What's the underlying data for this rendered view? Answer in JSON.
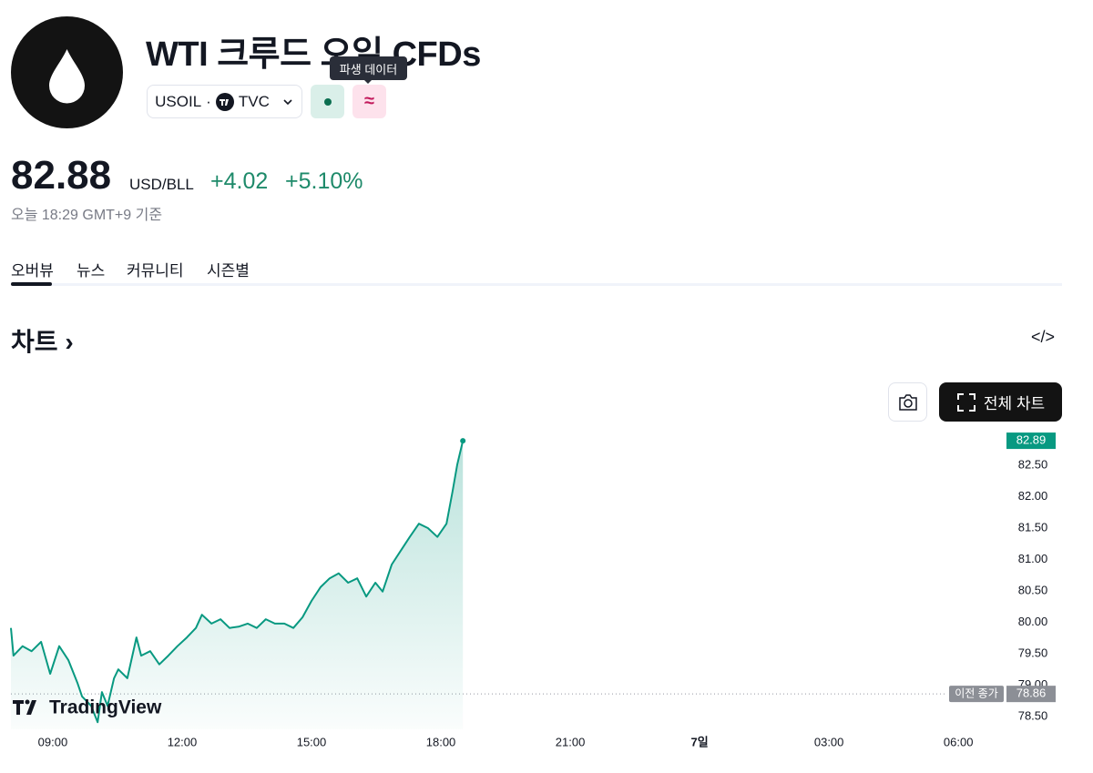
{
  "header": {
    "title": "WTI 크루드 오일 CFDs",
    "tooltip": "파생 데이터",
    "symbol": "USOIL",
    "separator": "·",
    "exchange": "TVC",
    "derivative_icon": "≈"
  },
  "quote": {
    "price": "82.88",
    "unit": "USD/BLL",
    "change": "+4.02",
    "change_percent": "+5.10%",
    "timestamp": "오늘 18:29 GMT+9 기준"
  },
  "tabs": [
    "오버뷰",
    "뉴스",
    "커뮤니티",
    "시즌별"
  ],
  "section": {
    "title": "차트",
    "chevron": "›",
    "embed_icon": "</>",
    "full_chart_button": "전체 차트"
  },
  "chart_data": {
    "type": "line",
    "color": "#089981",
    "logo": "TradingView",
    "x": [
      8.03,
      8.09,
      8.3,
      8.51,
      8.73,
      8.94,
      9.15,
      9.36,
      9.57,
      9.68,
      9.89,
      10.04,
      10.14,
      10.27,
      10.42,
      10.52,
      10.73,
      10.94,
      11.05,
      11.26,
      11.47,
      11.68,
      11.89,
      12.11,
      12.32,
      12.46,
      12.68,
      12.89,
      13.1,
      13.31,
      13.52,
      13.73,
      13.94,
      14.15,
      14.37,
      14.58,
      14.79,
      15.0,
      15.21,
      15.42,
      15.63,
      15.85,
      16.06,
      16.27,
      16.48,
      16.65,
      16.86,
      17.07,
      17.28,
      17.49,
      17.7,
      17.92,
      18.13,
      18.27,
      18.38,
      18.51
    ],
    "values": [
      79.91,
      79.47,
      79.62,
      79.54,
      79.69,
      79.18,
      79.62,
      79.4,
      79.04,
      78.82,
      78.67,
      78.41,
      78.89,
      78.67,
      79.11,
      79.25,
      79.11,
      79.76,
      79.47,
      79.54,
      79.33,
      79.47,
      79.62,
      79.76,
      79.91,
      80.12,
      79.98,
      80.05,
      79.91,
      79.93,
      79.98,
      79.91,
      80.05,
      79.98,
      79.98,
      79.91,
      80.08,
      80.34,
      80.56,
      80.7,
      80.78,
      80.63,
      80.7,
      80.41,
      80.63,
      80.49,
      80.92,
      81.14,
      81.36,
      81.57,
      81.5,
      81.36,
      81.57,
      82.08,
      82.51,
      82.89
    ],
    "last_price": 82.89,
    "previous_close": 78.86,
    "previous_close_label": "이전 종가",
    "xlim": [
      8.03,
      31.01
    ],
    "xticks": [
      {
        "value": 9,
        "label": "09:00"
      },
      {
        "value": 12,
        "label": "12:00"
      },
      {
        "value": 15,
        "label": "15:00"
      },
      {
        "value": 18,
        "label": "18:00"
      },
      {
        "value": 21,
        "label": "21:00"
      },
      {
        "value": 24,
        "label": "7일"
      },
      {
        "value": 27,
        "label": "03:00"
      },
      {
        "value": 30,
        "label": "06:00"
      }
    ],
    "ylim": [
      78.3,
      83.0
    ],
    "yticks": [
      {
        "value": 78.5,
        "label": "78.50"
      },
      {
        "value": 79,
        "label": "79.00"
      },
      {
        "value": 79.5,
        "label": "79.50"
      },
      {
        "value": 80,
        "label": "80.00"
      },
      {
        "value": 80.5,
        "label": "80.50"
      },
      {
        "value": 81,
        "label": "81.00"
      },
      {
        "value": 81.5,
        "label": "81.50"
      },
      {
        "value": 82,
        "label": "82.00"
      },
      {
        "value": 82.5,
        "label": "82.50"
      }
    ],
    "grid": false
  }
}
